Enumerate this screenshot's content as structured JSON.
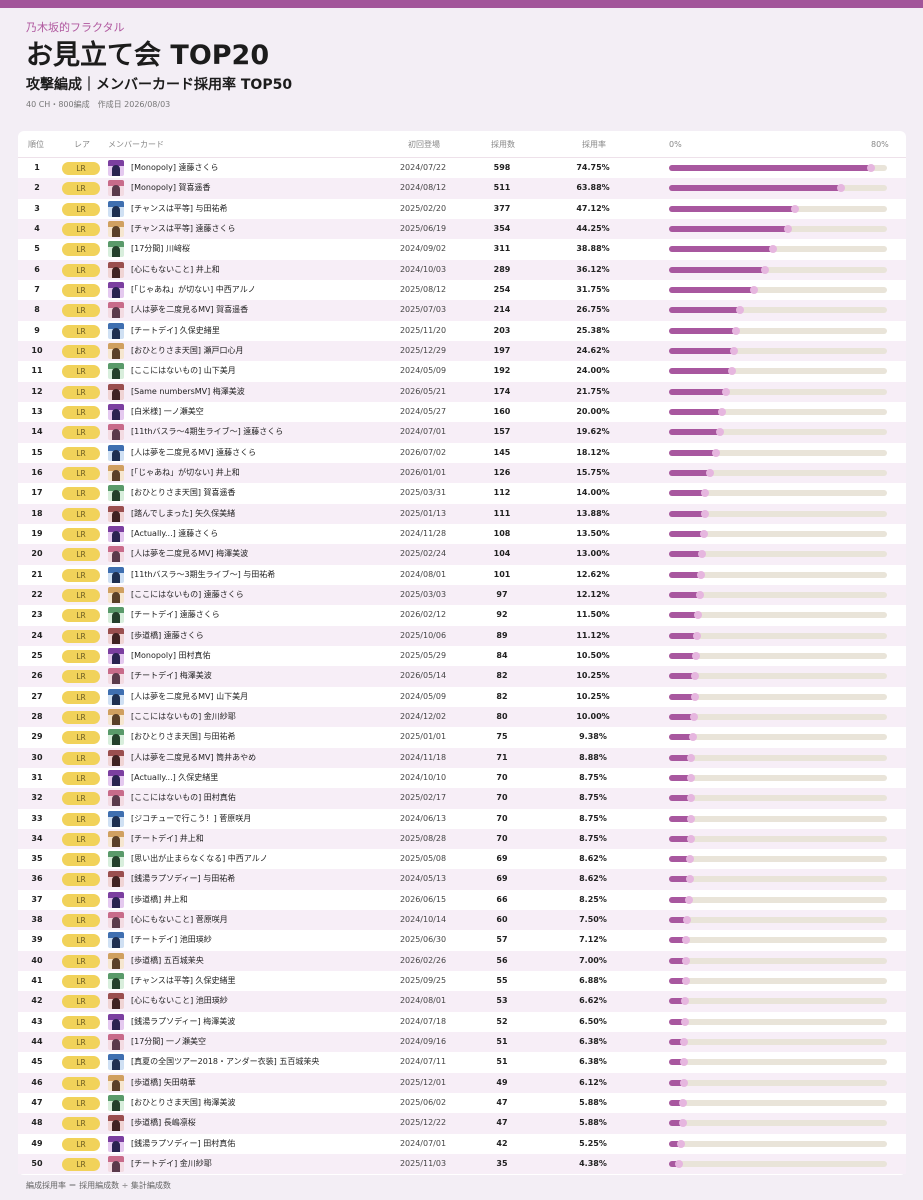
{
  "colors": {
    "accent": "#a2559a",
    "bar": "#a8579f",
    "track": "#e9e4d9",
    "rarity": "#f1d25a"
  },
  "header": {
    "site": "乃木坂的フラクタル",
    "title": "お見立て会 TOP20",
    "subtitle": "攻撃編成｜メンバーカード採用率 TOP50",
    "meta": "40 CH・800編成　作成日 2026/08/03"
  },
  "columns": {
    "rank": "順位",
    "rarity": "レア",
    "card": "メンバーカード",
    "first": "初回登場",
    "count": "採用数",
    "rate": "採用率",
    "bar_min": "0%",
    "bar_max": "80%"
  },
  "bar_scale_max": 80,
  "rows": [
    {
      "rank": "1",
      "rarity": "LR",
      "name": "[Monopoly] 遠藤さくら",
      "date": "2024/07/22",
      "count": "598",
      "rate": "74.75%",
      "value": 74.75
    },
    {
      "rank": "2",
      "rarity": "LR",
      "name": "[Monopoly] 賀喜遥香",
      "date": "2024/08/12",
      "count": "511",
      "rate": "63.88%",
      "value": 63.88
    },
    {
      "rank": "3",
      "rarity": "LR",
      "name": "[チャンスは平等] 与田祐希",
      "date": "2025/02/20",
      "count": "377",
      "rate": "47.12%",
      "value": 47.12
    },
    {
      "rank": "4",
      "rarity": "LR",
      "name": "[チャンスは平等] 遠藤さくら",
      "date": "2025/06/19",
      "count": "354",
      "rate": "44.25%",
      "value": 44.25
    },
    {
      "rank": "5",
      "rarity": "LR",
      "name": "[17分間] 川﨑桜",
      "date": "2024/09/02",
      "count": "311",
      "rate": "38.88%",
      "value": 38.88
    },
    {
      "rank": "6",
      "rarity": "LR",
      "name": "[心にもないこと] 井上和",
      "date": "2024/10/03",
      "count": "289",
      "rate": "36.12%",
      "value": 36.12
    },
    {
      "rank": "7",
      "rarity": "LR",
      "name": "[「じゃあね」が切ない] 中西アルノ",
      "date": "2025/08/12",
      "count": "254",
      "rate": "31.75%",
      "value": 31.75
    },
    {
      "rank": "8",
      "rarity": "LR",
      "name": "[人は夢を二度見るMV] 賀喜遥香",
      "date": "2025/07/03",
      "count": "214",
      "rate": "26.75%",
      "value": 26.75
    },
    {
      "rank": "9",
      "rarity": "LR",
      "name": "[チートデイ] 久保史緒里",
      "date": "2025/11/20",
      "count": "203",
      "rate": "25.38%",
      "value": 25.38
    },
    {
      "rank": "10",
      "rarity": "LR",
      "name": "[おひとりさま天国] 瀬戸口心月",
      "date": "2025/12/29",
      "count": "197",
      "rate": "24.62%",
      "value": 24.62
    },
    {
      "rank": "11",
      "rarity": "LR",
      "name": "[ここにはないもの] 山下美月",
      "date": "2024/05/09",
      "count": "192",
      "rate": "24.00%",
      "value": 24.0
    },
    {
      "rank": "12",
      "rarity": "LR",
      "name": "[Same numbersMV] 梅澤美波",
      "date": "2026/05/21",
      "count": "174",
      "rate": "21.75%",
      "value": 21.75
    },
    {
      "rank": "13",
      "rarity": "LR",
      "name": "[白米様] 一ノ瀬美空",
      "date": "2024/05/27",
      "count": "160",
      "rate": "20.00%",
      "value": 20.0
    },
    {
      "rank": "14",
      "rarity": "LR",
      "name": "[11thバスラ～4期生ライブ～] 遠藤さくら",
      "date": "2024/07/01",
      "count": "157",
      "rate": "19.62%",
      "value": 19.62
    },
    {
      "rank": "15",
      "rarity": "LR",
      "name": "[人は夢を二度見るMV] 遠藤さくら",
      "date": "2026/07/02",
      "count": "145",
      "rate": "18.12%",
      "value": 18.12
    },
    {
      "rank": "16",
      "rarity": "LR",
      "name": "[「じゃあね」が切ない] 井上和",
      "date": "2026/01/01",
      "count": "126",
      "rate": "15.75%",
      "value": 15.75
    },
    {
      "rank": "17",
      "rarity": "LR",
      "name": "[おひとりさま天国] 賀喜遥香",
      "date": "2025/03/31",
      "count": "112",
      "rate": "14.00%",
      "value": 14.0
    },
    {
      "rank": "18",
      "rarity": "LR",
      "name": "[踏んでしまった] 矢久保美緒",
      "date": "2025/01/13",
      "count": "111",
      "rate": "13.88%",
      "value": 13.88
    },
    {
      "rank": "19",
      "rarity": "LR",
      "name": "[Actually...] 遠藤さくら",
      "date": "2024/11/28",
      "count": "108",
      "rate": "13.50%",
      "value": 13.5
    },
    {
      "rank": "20",
      "rarity": "LR",
      "name": "[人は夢を二度見るMV] 梅澤美波",
      "date": "2025/02/24",
      "count": "104",
      "rate": "13.00%",
      "value": 13.0
    },
    {
      "rank": "21",
      "rarity": "LR",
      "name": "[11thバスラ～3期生ライブ～] 与田祐希",
      "date": "2024/08/01",
      "count": "101",
      "rate": "12.62%",
      "value": 12.62
    },
    {
      "rank": "22",
      "rarity": "LR",
      "name": "[ここにはないもの] 遠藤さくら",
      "date": "2025/03/03",
      "count": "97",
      "rate": "12.12%",
      "value": 12.12
    },
    {
      "rank": "23",
      "rarity": "LR",
      "name": "[チートデイ] 遠藤さくら",
      "date": "2026/02/12",
      "count": "92",
      "rate": "11.50%",
      "value": 11.5
    },
    {
      "rank": "24",
      "rarity": "LR",
      "name": "[歩道橋] 遠藤さくら",
      "date": "2025/10/06",
      "count": "89",
      "rate": "11.12%",
      "value": 11.12
    },
    {
      "rank": "25",
      "rarity": "LR",
      "name": "[Monopoly] 田村真佑",
      "date": "2025/05/29",
      "count": "84",
      "rate": "10.50%",
      "value": 10.5
    },
    {
      "rank": "26",
      "rarity": "LR",
      "name": "[チートデイ] 梅澤美波",
      "date": "2026/05/14",
      "count": "82",
      "rate": "10.25%",
      "value": 10.25
    },
    {
      "rank": "27",
      "rarity": "LR",
      "name": "[人は夢を二度見るMV] 山下美月",
      "date": "2024/05/09",
      "count": "82",
      "rate": "10.25%",
      "value": 10.25
    },
    {
      "rank": "28",
      "rarity": "LR",
      "name": "[ここにはないもの] 金川紗耶",
      "date": "2024/12/02",
      "count": "80",
      "rate": "10.00%",
      "value": 10.0
    },
    {
      "rank": "29",
      "rarity": "LR",
      "name": "[おひとりさま天国] 与田祐希",
      "date": "2025/01/01",
      "count": "75",
      "rate": "9.38%",
      "value": 9.38
    },
    {
      "rank": "30",
      "rarity": "LR",
      "name": "[人は夢を二度見るMV] 筒井あやめ",
      "date": "2024/11/18",
      "count": "71",
      "rate": "8.88%",
      "value": 8.88
    },
    {
      "rank": "31",
      "rarity": "LR",
      "name": "[Actually...] 久保史緒里",
      "date": "2024/10/10",
      "count": "70",
      "rate": "8.75%",
      "value": 8.75
    },
    {
      "rank": "32",
      "rarity": "LR",
      "name": "[ここにはないもの] 田村真佑",
      "date": "2025/02/17",
      "count": "70",
      "rate": "8.75%",
      "value": 8.75
    },
    {
      "rank": "33",
      "rarity": "LR",
      "name": "[ジコチューで行こう！] 菅原咲月",
      "date": "2024/06/13",
      "count": "70",
      "rate": "8.75%",
      "value": 8.75
    },
    {
      "rank": "34",
      "rarity": "LR",
      "name": "[チートデイ] 井上和",
      "date": "2025/08/28",
      "count": "70",
      "rate": "8.75%",
      "value": 8.75
    },
    {
      "rank": "35",
      "rarity": "LR",
      "name": "[思い出が止まらなくなる] 中西アルノ",
      "date": "2025/05/08",
      "count": "69",
      "rate": "8.62%",
      "value": 8.62
    },
    {
      "rank": "36",
      "rarity": "LR",
      "name": "[銭湯ラプソディー] 与田祐希",
      "date": "2024/05/13",
      "count": "69",
      "rate": "8.62%",
      "value": 8.62
    },
    {
      "rank": "37",
      "rarity": "LR",
      "name": "[歩道橋] 井上和",
      "date": "2026/06/15",
      "count": "66",
      "rate": "8.25%",
      "value": 8.25
    },
    {
      "rank": "38",
      "rarity": "LR",
      "name": "[心にもないこと] 菅原咲月",
      "date": "2024/10/14",
      "count": "60",
      "rate": "7.50%",
      "value": 7.5
    },
    {
      "rank": "39",
      "rarity": "LR",
      "name": "[チートデイ] 池田瑛紗",
      "date": "2025/06/30",
      "count": "57",
      "rate": "7.12%",
      "value": 7.12
    },
    {
      "rank": "40",
      "rarity": "LR",
      "name": "[歩道橋] 五百城茉央",
      "date": "2026/02/26",
      "count": "56",
      "rate": "7.00%",
      "value": 7.0
    },
    {
      "rank": "41",
      "rarity": "LR",
      "name": "[チャンスは平等] 久保史緒里",
      "date": "2025/09/25",
      "count": "55",
      "rate": "6.88%",
      "value": 6.88
    },
    {
      "rank": "42",
      "rarity": "LR",
      "name": "[心にもないこと] 池田瑛紗",
      "date": "2024/08/01",
      "count": "53",
      "rate": "6.62%",
      "value": 6.62
    },
    {
      "rank": "43",
      "rarity": "LR",
      "name": "[銭湯ラプソディー] 梅澤美波",
      "date": "2024/07/18",
      "count": "52",
      "rate": "6.50%",
      "value": 6.5
    },
    {
      "rank": "44",
      "rarity": "LR",
      "name": "[17分間] 一ノ瀬美空",
      "date": "2024/09/16",
      "count": "51",
      "rate": "6.38%",
      "value": 6.38
    },
    {
      "rank": "45",
      "rarity": "LR",
      "name": "[真夏の全国ツアー2018・アンダー衣装] 五百城茉央",
      "date": "2024/07/11",
      "count": "51",
      "rate": "6.38%",
      "value": 6.38
    },
    {
      "rank": "46",
      "rarity": "LR",
      "name": "[歩道橋] 矢田萌華",
      "date": "2025/12/01",
      "count": "49",
      "rate": "6.12%",
      "value": 6.12
    },
    {
      "rank": "47",
      "rarity": "LR",
      "name": "[おひとりさま天国] 梅澤美波",
      "date": "2025/06/02",
      "count": "47",
      "rate": "5.88%",
      "value": 5.88
    },
    {
      "rank": "48",
      "rarity": "LR",
      "name": "[歩道橋] 長嶋凛桜",
      "date": "2025/12/22",
      "count": "47",
      "rate": "5.88%",
      "value": 5.88
    },
    {
      "rank": "49",
      "rarity": "LR",
      "name": "[銭湯ラプソディー] 田村真佑",
      "date": "2024/07/01",
      "count": "42",
      "rate": "5.25%",
      "value": 5.25
    },
    {
      "rank": "50",
      "rarity": "LR",
      "name": "[チートデイ] 金川紗耶",
      "date": "2025/11/03",
      "count": "35",
      "rate": "4.38%",
      "value": 4.38
    }
  ],
  "footer": "編成採用率 ＝ 採用編成数 ÷ 集計編成数"
}
